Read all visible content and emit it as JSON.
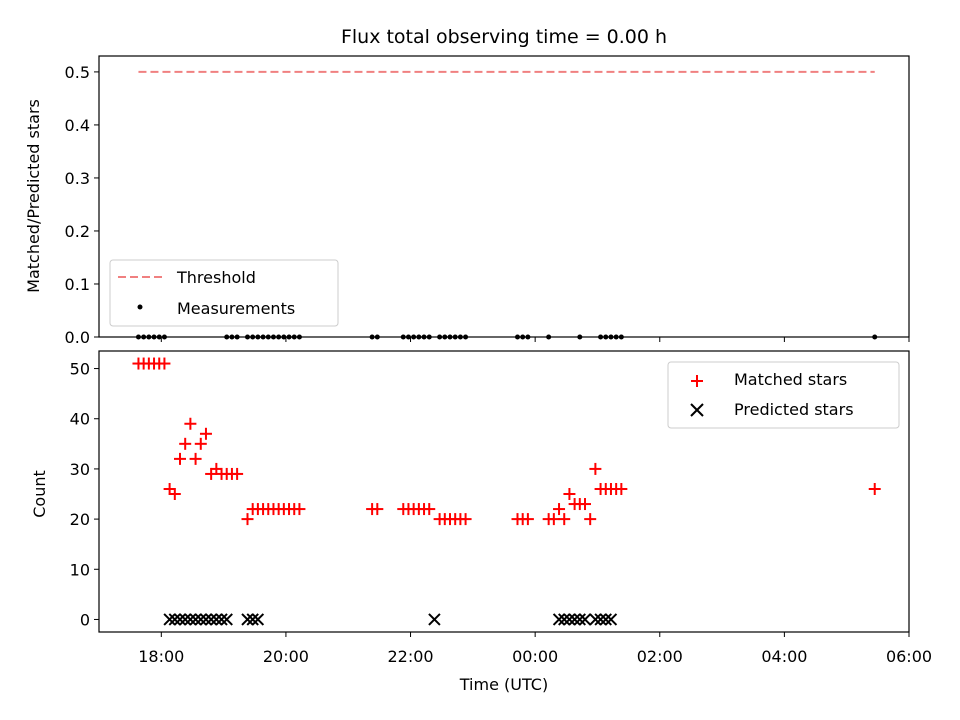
{
  "chart_data": [
    {
      "type": "scatter",
      "title": "Flux total observing time = 0.00 h",
      "xlabel": "",
      "ylabel": "Matched/Predicted stars",
      "ylim": [
        0,
        0.53
      ],
      "yticks": [
        "0.0",
        "0.1",
        "0.2",
        "0.3",
        "0.4",
        "0.5"
      ],
      "threshold": {
        "name": "Threshold",
        "value": 0.5,
        "x_start": "17:38",
        "x_end": "05:27",
        "color": "#f08080"
      },
      "legend": {
        "placement": "lower-left",
        "entries": [
          "Threshold",
          "Measurements"
        ]
      },
      "series": [
        {
          "name": "Measurements",
          "color": "#000000",
          "marker": "dot",
          "x": [
            "17:38",
            "17:43",
            "17:48",
            "17:53",
            "17:58",
            "18:03",
            "19:03",
            "19:08",
            "19:13",
            "19:23",
            "19:28",
            "19:33",
            "19:38",
            "19:43",
            "19:48",
            "19:53",
            "19:58",
            "20:03",
            "20:08",
            "20:13",
            "21:23",
            "21:28",
            "21:53",
            "21:58",
            "22:03",
            "22:08",
            "22:13",
            "22:18",
            "22:28",
            "22:33",
            "22:38",
            "22:43",
            "22:48",
            "22:53",
            "23:43",
            "23:48",
            "23:53",
            "00:13",
            "00:43",
            "01:03",
            "01:08",
            "01:13",
            "01:18",
            "01:23",
            "05:27"
          ],
          "y": [
            0,
            0,
            0,
            0,
            0,
            0,
            0,
            0,
            0,
            0,
            0,
            0,
            0,
            0,
            0,
            0,
            0,
            0,
            0,
            0,
            0,
            0,
            0,
            0,
            0,
            0,
            0,
            0,
            0,
            0,
            0,
            0,
            0,
            0,
            0,
            0,
            0,
            0,
            0,
            0,
            0,
            0,
            0,
            0,
            0
          ]
        }
      ]
    },
    {
      "type": "scatter",
      "title": "",
      "xlabel": "Time (UTC)",
      "ylabel": "Count",
      "ylim": [
        -2.5,
        53.5
      ],
      "yticks": [
        "0",
        "10",
        "20",
        "30",
        "40",
        "50"
      ],
      "xlim": [
        "17:00",
        "06:00"
      ],
      "xticks": [
        "18:00",
        "20:00",
        "22:00",
        "00:00",
        "02:00",
        "04:00",
        "06:00"
      ],
      "legend": {
        "placement": "top-right",
        "entries": [
          "Matched stars",
          "Predicted stars"
        ]
      },
      "series": [
        {
          "name": "Matched stars",
          "color": "#ff0000",
          "marker": "plus",
          "x": [
            "17:38",
            "17:43",
            "17:48",
            "17:53",
            "17:58",
            "18:03",
            "18:08",
            "18:13",
            "18:18",
            "18:23",
            "18:28",
            "18:33",
            "18:38",
            "18:43",
            "18:48",
            "18:53",
            "18:58",
            "19:03",
            "19:08",
            "19:13",
            "19:23",
            "19:28",
            "19:33",
            "19:38",
            "19:43",
            "19:48",
            "19:53",
            "19:58",
            "20:03",
            "20:08",
            "20:13",
            "21:23",
            "21:28",
            "21:53",
            "21:58",
            "22:03",
            "22:08",
            "22:13",
            "22:18",
            "22:28",
            "22:33",
            "22:38",
            "22:43",
            "22:48",
            "22:53",
            "23:43",
            "23:48",
            "23:53",
            "00:13",
            "00:18",
            "00:23",
            "00:28",
            "00:33",
            "00:38",
            "00:43",
            "00:48",
            "00:53",
            "00:58",
            "01:03",
            "01:08",
            "01:13",
            "01:18",
            "01:23",
            "05:27"
          ],
          "y": [
            51,
            51,
            51,
            51,
            51,
            51,
            26,
            25,
            32,
            35,
            39,
            32,
            35,
            37,
            29,
            30,
            29,
            29,
            29,
            29,
            20,
            22,
            22,
            22,
            22,
            22,
            22,
            22,
            22,
            22,
            22,
            22,
            22,
            22,
            22,
            22,
            22,
            22,
            22,
            20,
            20,
            20,
            20,
            20,
            20,
            20,
            20,
            20,
            20,
            20,
            22,
            20,
            25,
            23,
            23,
            23,
            20,
            30,
            26,
            26,
            26,
            26,
            26,
            26
          ]
        },
        {
          "name": "Predicted stars",
          "color": "#000000",
          "marker": "x",
          "x": [
            "18:08",
            "18:13",
            "18:18",
            "18:23",
            "18:28",
            "18:33",
            "18:38",
            "18:43",
            "18:48",
            "18:53",
            "18:58",
            "19:03",
            "19:23",
            "19:28",
            "19:33",
            "22:23",
            "00:23",
            "00:28",
            "00:33",
            "00:38",
            "00:43",
            "00:48",
            "00:58",
            "01:03",
            "01:08",
            "01:13"
          ],
          "y": [
            0,
            0,
            0,
            0,
            0,
            0,
            0,
            0,
            0,
            0,
            0,
            0,
            0,
            0,
            0,
            0,
            0,
            0,
            0,
            0,
            0,
            0,
            0,
            0,
            0,
            0
          ]
        }
      ]
    }
  ]
}
